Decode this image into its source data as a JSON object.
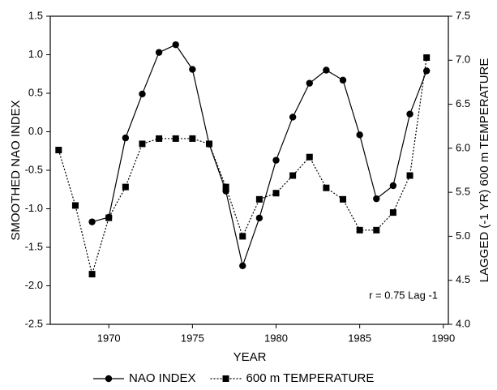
{
  "chart_data": {
    "type": "line",
    "x": [
      1967,
      1968,
      1969,
      1970,
      1971,
      1972,
      1973,
      1974,
      1975,
      1976,
      1977,
      1978,
      1979,
      1980,
      1981,
      1982,
      1983,
      1984,
      1985,
      1986,
      1987,
      1988,
      1989
    ],
    "series": [
      {
        "name": "NAO INDEX",
        "color": "#000000",
        "style": "solid",
        "marker": "circle",
        "values": [
          null,
          null,
          -1.17,
          -1.11,
          -0.08,
          0.49,
          1.03,
          1.13,
          0.81,
          -0.16,
          -0.77,
          -1.74,
          -1.12,
          -0.37,
          0.19,
          0.63,
          0.8,
          0.67,
          -0.04,
          -0.87,
          -0.7,
          0.23,
          0.79
        ]
      },
      {
        "name": "600 m TEMPERATURE",
        "color": "#000000",
        "style": "dotted",
        "marker": "square",
        "axis": "y2",
        "values": [
          5.98,
          5.35,
          4.57,
          5.21,
          5.56,
          6.05,
          6.11,
          6.11,
          6.11,
          6.05,
          5.56,
          5.0,
          5.42,
          5.49,
          5.69,
          5.9,
          5.55,
          5.42,
          5.07,
          5.07,
          5.27,
          5.69,
          7.03
        ]
      }
    ],
    "xlabel": "YEAR",
    "ylabel": "SMOOTHED NAO INDEX",
    "y2label": "LAGGED (-1 YR) 600 m TEMPERATURE",
    "annotation": "r = 0.75 Lag -1",
    "xlim": [
      1966.5,
      1990.3
    ],
    "xticks": [
      1970,
      1975,
      1980,
      1985,
      1990
    ],
    "ylim": [
      -2.5,
      1.5
    ],
    "yticks": [
      {
        "value": -2.5,
        "label": "-2.5"
      },
      {
        "value": -2,
        "label": "-2.0"
      },
      {
        "value": -1.5,
        "label": "-1.5"
      },
      {
        "value": -1,
        "label": "-1.0"
      },
      {
        "value": -0.5,
        "label": "-0.5"
      },
      {
        "value": 0,
        "label": "0.0"
      },
      {
        "value": 0.5,
        "label": "0.5"
      },
      {
        "value": 1,
        "label": "1.0"
      },
      {
        "value": 1.5,
        "label": "1.5"
      }
    ],
    "y2lim": [
      4.0,
      7.5
    ],
    "y2ticks": [
      {
        "value": 4,
        "label": "4.0"
      },
      {
        "value": 4.5,
        "label": "4.5"
      },
      {
        "value": 5,
        "label": "5.0"
      },
      {
        "value": 5.5,
        "label": "5.5"
      },
      {
        "value": 6,
        "label": "6.0"
      },
      {
        "value": 6.5,
        "label": "6.5"
      },
      {
        "value": 7,
        "label": "7.0"
      },
      {
        "value": 7.5,
        "label": "7.5"
      }
    ],
    "legend": "bottom"
  }
}
